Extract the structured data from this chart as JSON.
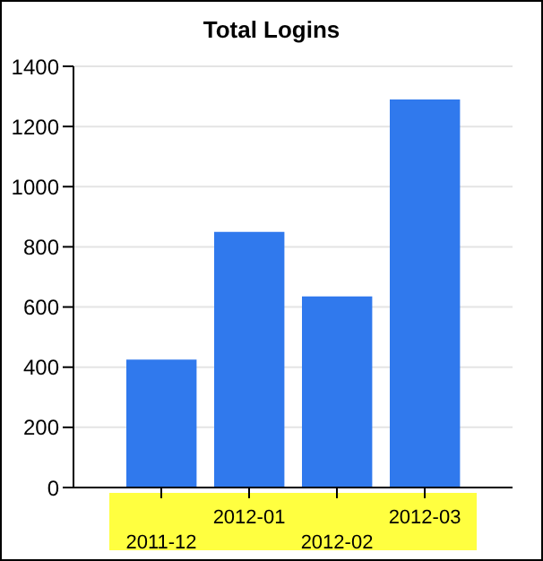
{
  "chart_data": {
    "type": "bar",
    "title": "Total Logins",
    "categories": [
      "2011-12",
      "2012-01",
      "2012-02",
      "2012-03"
    ],
    "values": [
      425,
      850,
      635,
      1290
    ],
    "color": "#3079ed",
    "ylim": [
      0,
      1400
    ],
    "yticks": [
      0,
      200,
      400,
      600,
      800,
      1000,
      1200,
      1400
    ],
    "grid": "y"
  }
}
